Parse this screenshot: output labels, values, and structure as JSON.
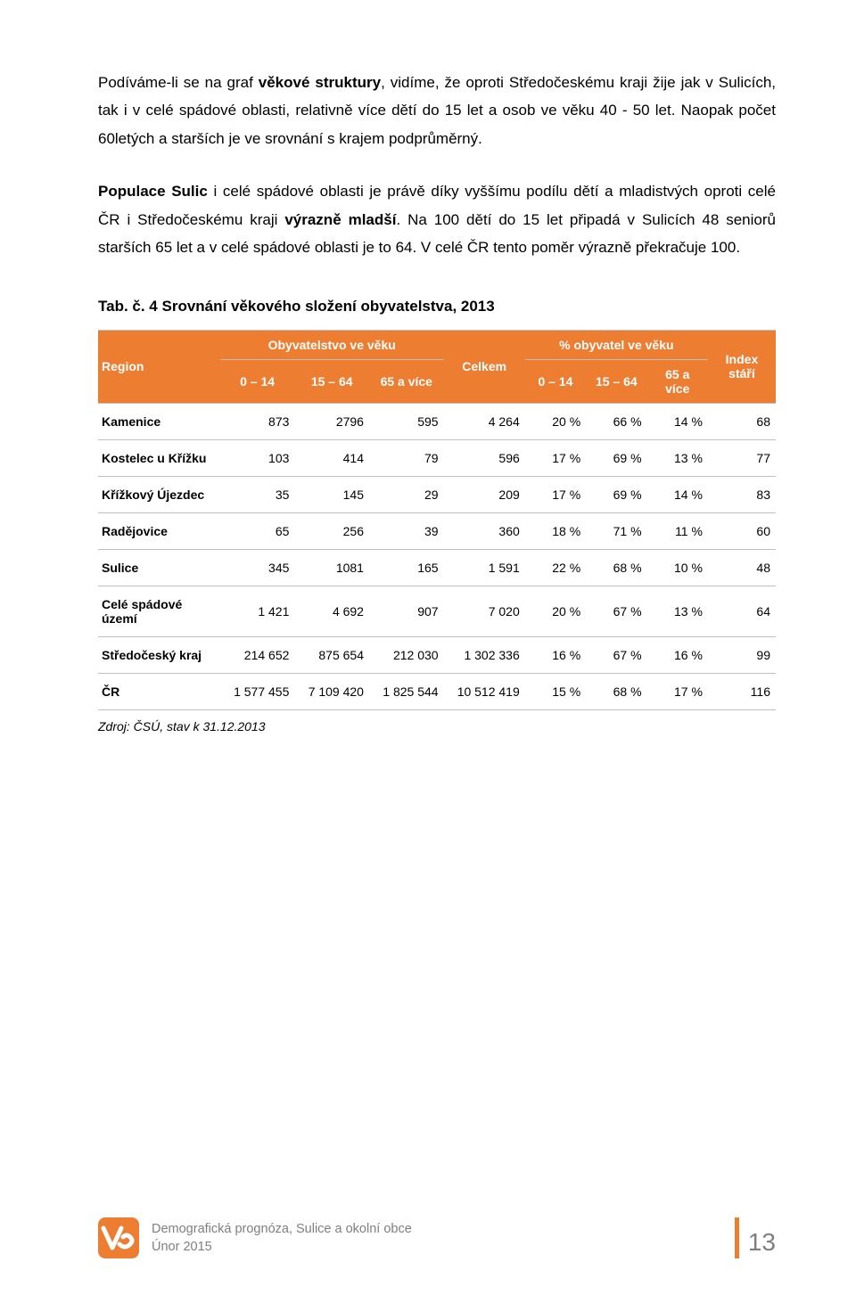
{
  "para1": {
    "s1a": "Podíváme-li se na graf ",
    "s1b": "věkové struktury",
    "s1c": ", vidíme, že oproti Středočeskému kraji žije jak v Sulicích, tak i v celé spádové oblasti, relativně více dětí do 15 let a osob ve věku 40 - 50 let. Naopak počet 60letých a starších je ve srovnání s krajem podprůměrný."
  },
  "para2": {
    "s1a": "Populace Sulic",
    "s1b": " i celé spádové oblasti je právě díky vyššímu podílu dětí a mladistvých oproti celé ČR i Středočeskému kraji ",
    "s1c": "výrazně mladší",
    "s1d": ". Na 100 dětí do 15 let připadá v Sulicích 48 seniorů starších 65 let a v celé spádové oblasti je to 64. V celé ČR tento poměr výrazně překračuje 100."
  },
  "table_title": "Tab. č. 4 Srovnání věkového složení obyvatelstva, 2013",
  "headers": {
    "region": "Region",
    "pop": "Obyvatelstvo ve věku",
    "celkem": "Celkem",
    "pct": "% obyvatel ve věku",
    "index": "Index stáří",
    "c0": "0 – 14",
    "c1": "15 – 64",
    "c2": "65 a více",
    "c3": "0 – 14",
    "c4": "15 – 64",
    "c5": "65 a více"
  },
  "rows": [
    {
      "name": "Kamenice",
      "v": [
        "873",
        "2796",
        "595",
        "4 264",
        "20 %",
        "66 %",
        "14 %",
        "68"
      ]
    },
    {
      "name": "Kostelec u Křížku",
      "v": [
        "103",
        "414",
        "79",
        "596",
        "17 %",
        "69 %",
        "13 %",
        "77"
      ]
    },
    {
      "name": "Křížkový Újezdec",
      "v": [
        "35",
        "145",
        "29",
        "209",
        "17 %",
        "69 %",
        "14 %",
        "83"
      ]
    },
    {
      "name": "Radějovice",
      "v": [
        "65",
        "256",
        "39",
        "360",
        "18 %",
        "71 %",
        "11 %",
        "60"
      ]
    },
    {
      "name": "Sulice",
      "v": [
        "345",
        "1081",
        "165",
        "1 591",
        "22 %",
        "68 %",
        "10 %",
        "48"
      ]
    },
    {
      "name": "Celé spádové území",
      "v": [
        "1 421",
        "4 692",
        "907",
        "7 020",
        "20 %",
        "67 %",
        "13 %",
        "64"
      ]
    },
    {
      "name": "Středočeský kraj",
      "v": [
        "214 652",
        "875 654",
        "212 030",
        "1 302 336",
        "16 %",
        "67 %",
        "16 %",
        "99"
      ]
    },
    {
      "name": "ČR",
      "v": [
        "1 577 455",
        "7 109 420",
        "1 825 544",
        "10 512 419",
        "15 %",
        "68 %",
        "17 %",
        "116"
      ]
    }
  ],
  "source": "Zdroj: ČSÚ, stav k 31.12.2013",
  "footer": {
    "line1": "Demografická prognóza, Sulice a okolní obce",
    "line2": "Únor 2015",
    "page": "13"
  },
  "colors": {
    "header_bg": "#ED7D31",
    "header_fg": "#ffffff",
    "border": "#bfbfbf",
    "footer_text": "#7f7f7f",
    "accent": "#ED7D31"
  },
  "col_widths_pct": [
    18,
    11,
    11,
    11,
    12,
    9,
    9,
    9,
    10
  ]
}
